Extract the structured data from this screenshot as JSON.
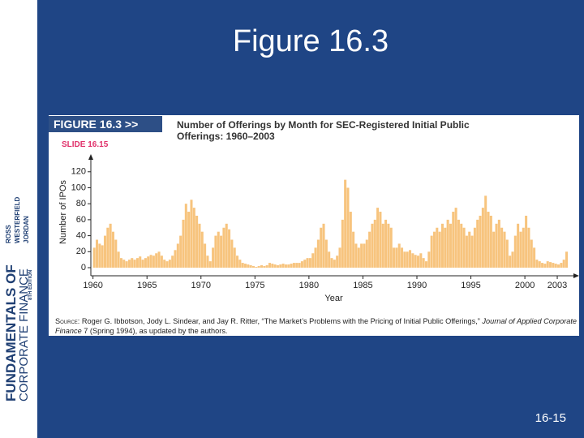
{
  "slide_title": "Figure 16.3",
  "slide_number": "16-15",
  "book": {
    "series": "FUNDAMENTALS OF",
    "title": "CORPORATE FINANCE",
    "author1": "ROSS",
    "author2": "WESTERFIELD",
    "author3": "JORDAN",
    "edition": "8TH EDITION"
  },
  "figure_label": "FIGURE 16.3 >>",
  "slide_label": "SLIDE 16.15",
  "source": {
    "label": "Source:",
    "text": "Roger G. Ibbotson, Jody L. Sindear, and Jay R. Ritter, “The Market’s Problems with the Pricing of Initial Public Offerings,” ",
    "journal": "Journal of Applied Corporate Finance",
    "rest": " 7 (Spring 1994), as updated by the authors."
  },
  "chart_data": {
    "type": "bar",
    "title": "Number of Offerings by Month for SEC-Registered Initial Public Offerings: 1960–2003",
    "x_label": "Year",
    "y_label": "Number of IPOs",
    "color": "#f7c47e",
    "xlim": [
      1959.8,
      2004.5
    ],
    "ylim": [
      0,
      135
    ],
    "xticks": [
      1960,
      1965,
      1970,
      1975,
      1980,
      1985,
      1990,
      1995,
      2000,
      2003
    ],
    "yticks": [
      0,
      20,
      40,
      60,
      80,
      100,
      120
    ],
    "x": [
      1960,
      1960.25,
      1960.5,
      1960.75,
      1961,
      1961.25,
      1961.5,
      1961.75,
      1962,
      1962.25,
      1962.5,
      1962.75,
      1963,
      1963.25,
      1963.5,
      1963.75,
      1964,
      1964.25,
      1964.5,
      1964.75,
      1965,
      1965.25,
      1965.5,
      1965.75,
      1966,
      1966.25,
      1966.5,
      1966.75,
      1967,
      1967.25,
      1967.5,
      1967.75,
      1968,
      1968.25,
      1968.5,
      1968.75,
      1969,
      1969.25,
      1969.5,
      1969.75,
      1970,
      1970.25,
      1970.5,
      1970.75,
      1971,
      1971.25,
      1971.5,
      1971.75,
      1972,
      1972.25,
      1972.5,
      1972.75,
      1973,
      1973.25,
      1973.5,
      1973.75,
      1974,
      1974.25,
      1974.5,
      1974.75,
      1975,
      1975.25,
      1975.5,
      1975.75,
      1976,
      1976.25,
      1976.5,
      1976.75,
      1977,
      1977.25,
      1977.5,
      1977.75,
      1978,
      1978.25,
      1978.5,
      1978.75,
      1979,
      1979.25,
      1979.5,
      1979.75,
      1980,
      1980.25,
      1980.5,
      1980.75,
      1981,
      1981.25,
      1981.5,
      1981.75,
      1982,
      1982.25,
      1982.5,
      1982.75,
      1983,
      1983.25,
      1983.5,
      1983.75,
      1984,
      1984.25,
      1984.5,
      1984.75,
      1985,
      1985.25,
      1985.5,
      1985.75,
      1986,
      1986.25,
      1986.5,
      1986.75,
      1987,
      1987.25,
      1987.5,
      1987.75,
      1988,
      1988.25,
      1988.5,
      1988.75,
      1989,
      1989.25,
      1989.5,
      1989.75,
      1990,
      1990.25,
      1990.5,
      1990.75,
      1991,
      1991.25,
      1991.5,
      1991.75,
      1992,
      1992.25,
      1992.5,
      1992.75,
      1993,
      1993.25,
      1993.5,
      1993.75,
      1994,
      1994.25,
      1994.5,
      1994.75,
      1995,
      1995.25,
      1995.5,
      1995.75,
      1996,
      1996.25,
      1996.5,
      1996.75,
      1997,
      1997.25,
      1997.5,
      1997.75,
      1998,
      1998.25,
      1998.5,
      1998.75,
      1999,
      1999.25,
      1999.5,
      1999.75,
      2000,
      2000.25,
      2000.5,
      2000.75,
      2001,
      2001.25,
      2001.5,
      2001.75,
      2002,
      2002.25,
      2002.5,
      2002.75,
      2003,
      2003.25,
      2003.5,
      2003.75
    ],
    "values": [
      25,
      35,
      30,
      28,
      40,
      50,
      55,
      45,
      35,
      20,
      12,
      10,
      8,
      10,
      12,
      10,
      12,
      14,
      10,
      12,
      14,
      16,
      15,
      18,
      20,
      15,
      10,
      8,
      10,
      15,
      22,
      30,
      40,
      60,
      80,
      70,
      85,
      75,
      65,
      55,
      45,
      30,
      15,
      8,
      25,
      40,
      45,
      40,
      50,
      55,
      48,
      35,
      25,
      15,
      10,
      6,
      5,
      4,
      3,
      2,
      1,
      2,
      3,
      2,
      3,
      6,
      5,
      4,
      3,
      4,
      5,
      4,
      4,
      5,
      6,
      6,
      6,
      8,
      10,
      12,
      12,
      18,
      25,
      35,
      50,
      55,
      35,
      20,
      12,
      10,
      15,
      25,
      60,
      110,
      100,
      70,
      45,
      30,
      25,
      30,
      30,
      35,
      45,
      55,
      60,
      75,
      70,
      55,
      60,
      55,
      50,
      25,
      25,
      30,
      25,
      20,
      20,
      22,
      18,
      16,
      15,
      18,
      12,
      8,
      20,
      40,
      45,
      50,
      45,
      55,
      50,
      60,
      55,
      70,
      75,
      60,
      55,
      50,
      40,
      45,
      40,
      50,
      60,
      65,
      75,
      90,
      70,
      65,
      45,
      55,
      60,
      50,
      45,
      35,
      15,
      20,
      40,
      55,
      45,
      50,
      65,
      50,
      35,
      25,
      10,
      8,
      6,
      5,
      8,
      7,
      6,
      5,
      4,
      6,
      10,
      20
    ]
  }
}
